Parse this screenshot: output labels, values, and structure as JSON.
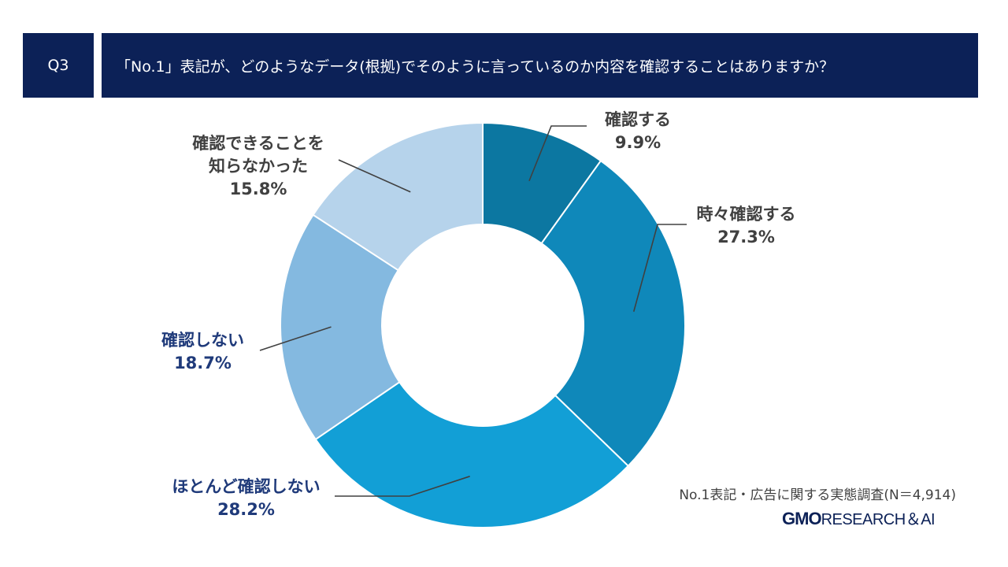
{
  "header": {
    "question_tag": "Q3",
    "question_text": "「No.1」表記が、どのようなデータ(根拠)でそのように言っているのか内容を確認することはありますか？"
  },
  "chart_data": {
    "type": "pie",
    "subtype": "donut",
    "categories": [
      "確認する",
      "時々確認する",
      "ほとんど確認しない",
      "確認しない",
      "確認できることを知らなかった"
    ],
    "label_lines": [
      [
        "確認する"
      ],
      [
        "時々確認する"
      ],
      [
        "ほとんど確認しない"
      ],
      [
        "確認しない"
      ],
      [
        "確認できることを",
        "知らなかった"
      ]
    ],
    "values": [
      9.9,
      27.3,
      28.2,
      18.7,
      15.8
    ],
    "value_labels": [
      "9.9%",
      "27.3%",
      "28.2%",
      "18.7%",
      "15.8%"
    ],
    "colors": [
      "#0c77a1",
      "#0f88ba",
      "#129fd6",
      "#84b9e0",
      "#b6d3eb"
    ],
    "label_colors": [
      "#404040",
      "#404040",
      "#1f3a7a",
      "#1f3a7a",
      "#404040"
    ],
    "start": "top, clockwise"
  },
  "footer": {
    "source": "No.1表記・広告に関する実態調査(N＝4,914)",
    "logo_gmo": "GMO",
    "logo_rest": "RESEARCH＆AI"
  }
}
